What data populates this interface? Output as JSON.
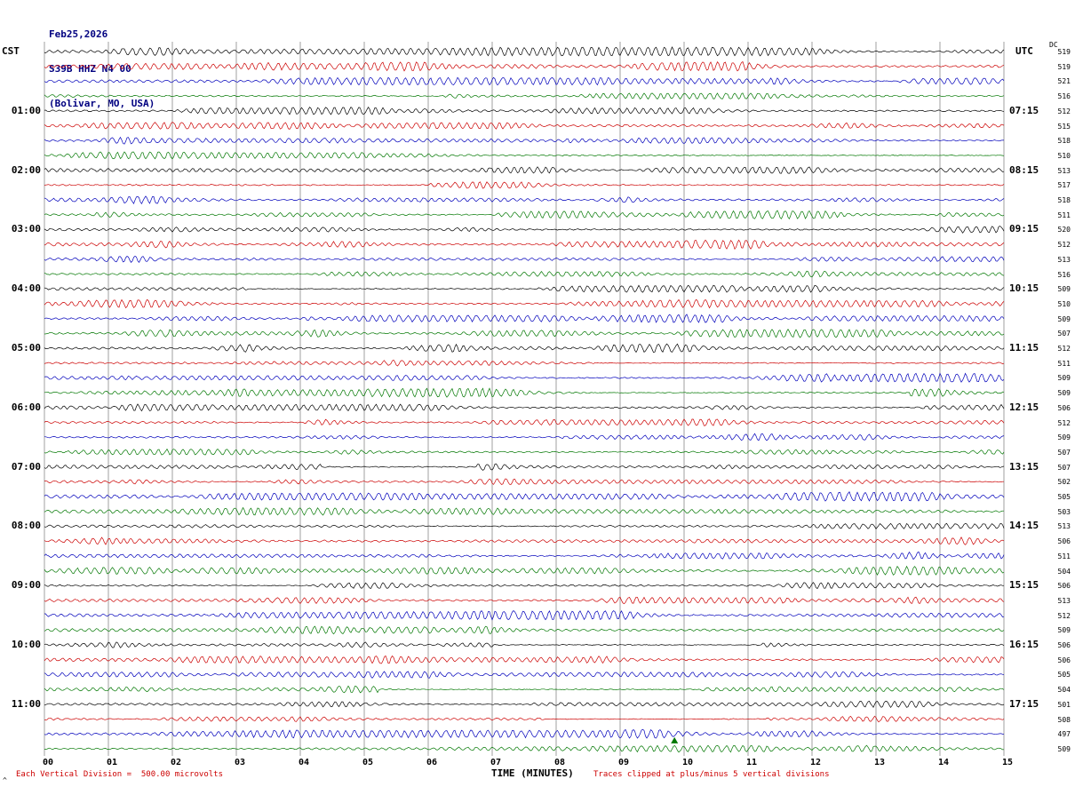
{
  "header": {
    "date": "Feb25,2026",
    "station": "S39B HHZ N4 00",
    "location": "(Bolivar, MO, USA)"
  },
  "axes": {
    "left_timezone": "CST",
    "right_timezone": "UTC",
    "right_col_header": "DC",
    "left_hour_labels": [
      "01:00",
      "02:00",
      "03:00",
      "04:00",
      "05:00",
      "06:00",
      "07:00",
      "08:00",
      "09:00",
      "10:00",
      "11:00"
    ],
    "right_hour_labels": [
      "07:15",
      "08:15",
      "09:15",
      "10:15",
      "11:15",
      "12:15",
      "13:15",
      "14:15",
      "15:15",
      "16:15",
      "17:15"
    ],
    "x_tick_labels": [
      "00",
      "01",
      "02",
      "03",
      "04",
      "05",
      "06",
      "07",
      "08",
      "09",
      "10",
      "11",
      "12",
      "13",
      "14",
      "15"
    ],
    "x_axis_title": "TIME (MINUTES)"
  },
  "footer": {
    "left_note": "Each Vertical Division =  500.00 microvolts",
    "right_note": "Traces clipped at plus/minus 5 vertical divisions",
    "corner_mark": "^"
  },
  "colors": {
    "trace_cycle": [
      "#000000",
      "#cc0000",
      "#0000bb",
      "#007700"
    ],
    "grid": "#777777",
    "note_red": "#cc0000",
    "header_text": "#000080",
    "marker_green": "#007700"
  },
  "chart_data": {
    "type": "line",
    "title": "Helicorder record S39B HHZ N4 00 (Bolivar, MO, USA) Feb25,2026",
    "xlabel": "TIME (MINUTES)",
    "x_range_minutes": [
      0,
      15
    ],
    "minutes_per_row": 15,
    "rows": 48,
    "traces_per_hour": 4,
    "row_color_cycle": [
      "black",
      "red",
      "blue",
      "green"
    ],
    "left_time_scale": "CST",
    "right_time_scale": "UTC",
    "dc_offsets": [
      519,
      519,
      521,
      516,
      512,
      515,
      518,
      510,
      513,
      517,
      518,
      511,
      520,
      512,
      513,
      516,
      509,
      510,
      509,
      507,
      512,
      511,
      509,
      509,
      506,
      512,
      509,
      507,
      507,
      502,
      505,
      503,
      513,
      506,
      511,
      504,
      506,
      513,
      512,
      509,
      506,
      506,
      505,
      504,
      501,
      508,
      497,
      509
    ],
    "vertical_division_microvolts": 500.0,
    "clip_divisions": 5,
    "waveform": "continuous microseismic background noise with intermittent amplitude bursts; regenerated pseudo-randomly per row",
    "event_marker": {
      "row": 47,
      "minute": 9.85,
      "symbol": "triangle-up",
      "color": "#007700"
    }
  }
}
